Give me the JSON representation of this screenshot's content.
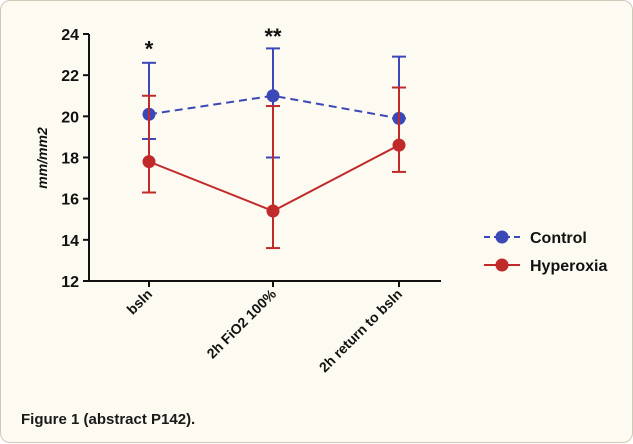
{
  "figure": {
    "caption": "Figure 1 (abstract P142)."
  },
  "chart_data": {
    "type": "line",
    "title": "",
    "xlabel": "",
    "ylabel": "mm/mm2",
    "categories": [
      "bsln",
      "2h FiO2 100%",
      "2h return to bsln"
    ],
    "ylim": [
      12,
      24
    ],
    "yticks": [
      "12",
      "14",
      "16",
      "18",
      "20",
      "22",
      "24"
    ],
    "grid": false,
    "legend_position": "right",
    "series": [
      {
        "name": "Control",
        "color": "#3a48b8",
        "line_style": "dashed",
        "values": [
          20.1,
          21.0,
          19.9
        ],
        "err_low": [
          18.9,
          18.0,
          19.9
        ],
        "err_high": [
          22.6,
          23.3,
          22.9
        ]
      },
      {
        "name": "Hyperoxia",
        "color": "#c02a2a",
        "line_style": "solid",
        "values": [
          17.8,
          15.4,
          18.6
        ],
        "err_low": [
          16.3,
          13.6,
          17.3
        ],
        "err_high": [
          21.0,
          20.5,
          21.4
        ]
      }
    ],
    "annotations": [
      {
        "category_index": 0,
        "y": 23.4,
        "text": "*"
      },
      {
        "category_index": 1,
        "y": 24.0,
        "text": "**"
      }
    ]
  }
}
